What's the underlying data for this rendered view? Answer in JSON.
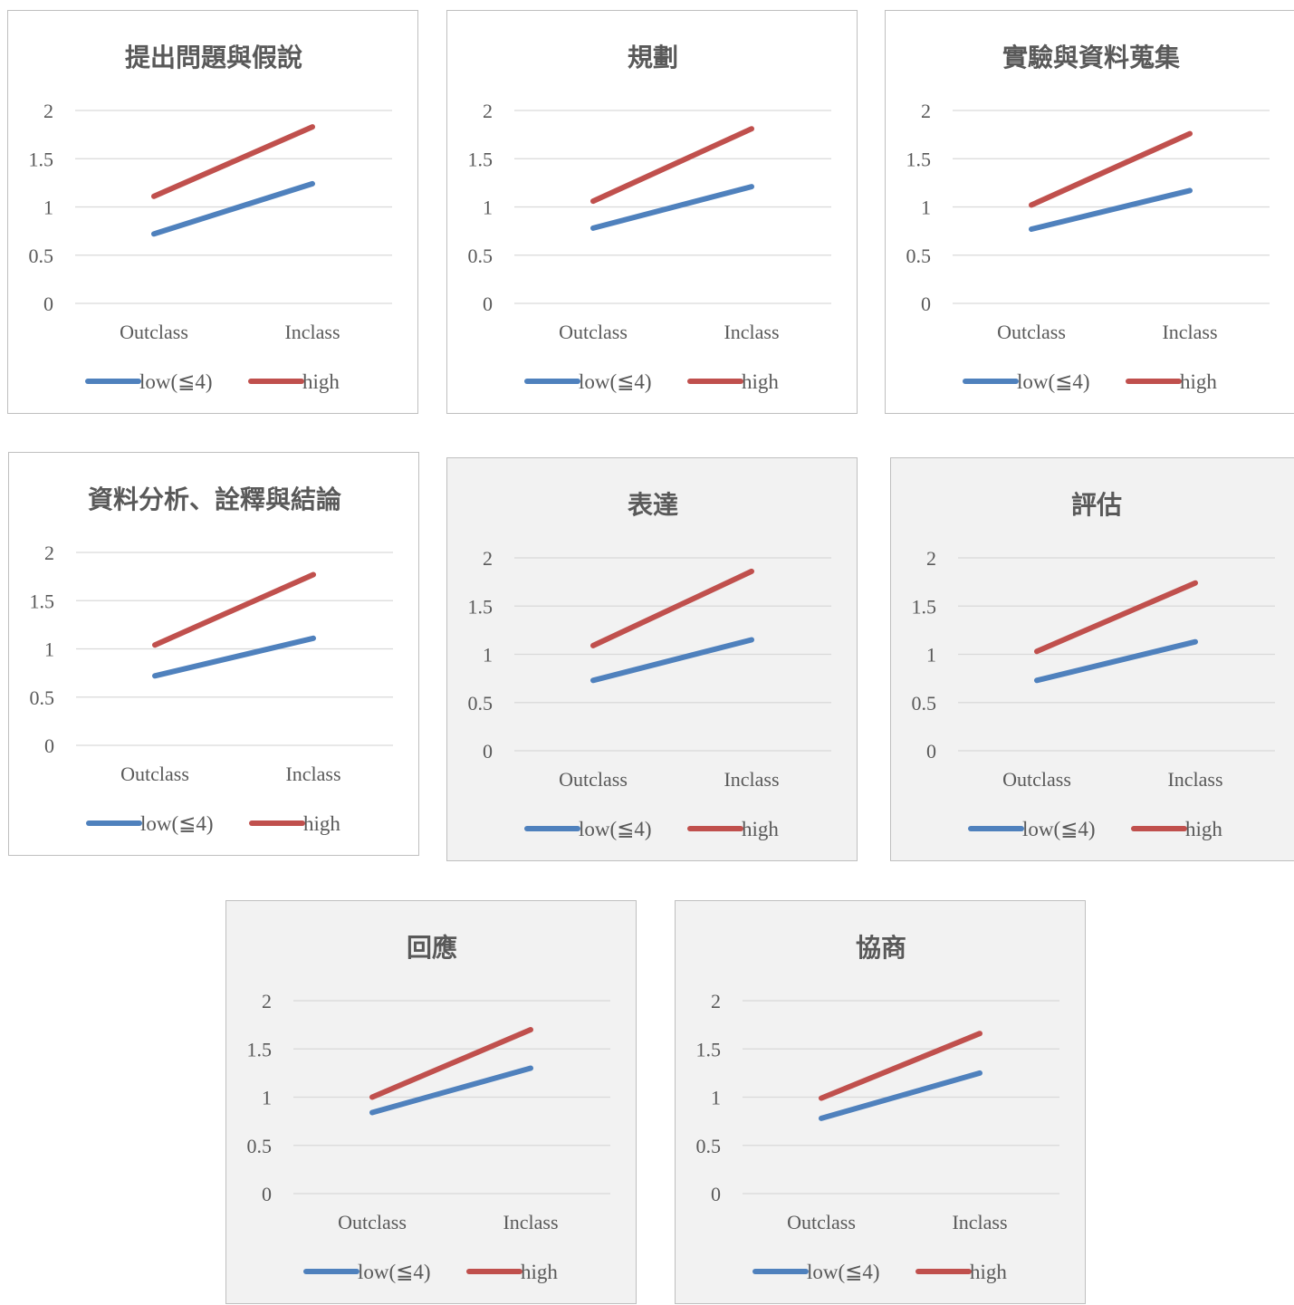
{
  "colors": {
    "low": "#4f81bd",
    "high": "#c0504d",
    "grid": "#d9d9d9",
    "text": "#595959"
  },
  "chart_data": [
    {
      "type": "line",
      "title": "提出問題與假說",
      "background": "white",
      "categories": [
        "Outclass",
        "Inclass"
      ],
      "ylim": [
        0,
        2
      ],
      "yticks": [
        "0",
        "0.5",
        "1",
        "1.5",
        "2"
      ],
      "grid": true,
      "legend": "bottom",
      "series": [
        {
          "name": "low(≦4)",
          "values": [
            0.72,
            1.24
          ]
        },
        {
          "name": "high",
          "values": [
            1.11,
            1.83
          ]
        }
      ]
    },
    {
      "type": "line",
      "title": "規劃",
      "background": "white",
      "categories": [
        "Outclass",
        "Inclass"
      ],
      "ylim": [
        0,
        2
      ],
      "yticks": [
        "0",
        "0.5",
        "1",
        "1.5",
        "2"
      ],
      "grid": true,
      "legend": "bottom",
      "series": [
        {
          "name": "low(≦4)",
          "values": [
            0.78,
            1.21
          ]
        },
        {
          "name": "high",
          "values": [
            1.06,
            1.81
          ]
        }
      ]
    },
    {
      "type": "line",
      "title": "實驗與資料蒐集",
      "background": "white",
      "categories": [
        "Outclass",
        "Inclass"
      ],
      "ylim": [
        0,
        2
      ],
      "yticks": [
        "0",
        "0.5",
        "1",
        "1.5",
        "2"
      ],
      "grid": true,
      "legend": "bottom",
      "series": [
        {
          "name": "low(≦4)",
          "values": [
            0.77,
            1.17
          ]
        },
        {
          "name": "high",
          "values": [
            1.02,
            1.76
          ]
        }
      ]
    },
    {
      "type": "line",
      "title": "資料分析、詮釋與結論",
      "background": "white",
      "categories": [
        "Outclass",
        "Inclass"
      ],
      "ylim": [
        0,
        2
      ],
      "yticks": [
        "0",
        "0.5",
        "1",
        "1.5",
        "2"
      ],
      "grid": true,
      "legend": "bottom",
      "series": [
        {
          "name": "low(≦4)",
          "values": [
            0.72,
            1.11
          ]
        },
        {
          "name": "high",
          "values": [
            1.04,
            1.77
          ]
        }
      ]
    },
    {
      "type": "line",
      "title": "表達",
      "background": "grey",
      "categories": [
        "Outclass",
        "Inclass"
      ],
      "ylim": [
        0,
        2
      ],
      "yticks": [
        "0",
        "0.5",
        "1",
        "1.5",
        "2"
      ],
      "grid": true,
      "legend": "bottom",
      "series": [
        {
          "name": "low(≦4)",
          "values": [
            0.73,
            1.15
          ]
        },
        {
          "name": "high",
          "values": [
            1.09,
            1.86
          ]
        }
      ]
    },
    {
      "type": "line",
      "title": "評估",
      "background": "grey",
      "categories": [
        "Outclass",
        "Inclass"
      ],
      "ylim": [
        0,
        2
      ],
      "yticks": [
        "0",
        "0.5",
        "1",
        "1.5",
        "2"
      ],
      "grid": true,
      "legend": "bottom",
      "series": [
        {
          "name": "low(≦4)",
          "values": [
            0.73,
            1.13
          ]
        },
        {
          "name": "high",
          "values": [
            1.03,
            1.74
          ]
        }
      ]
    },
    {
      "type": "line",
      "title": "回應",
      "background": "grey",
      "categories": [
        "Outclass",
        "Inclass"
      ],
      "ylim": [
        0,
        2
      ],
      "yticks": [
        "0",
        "0.5",
        "1",
        "1.5",
        "2"
      ],
      "grid": true,
      "legend": "bottom",
      "series": [
        {
          "name": "low(≦4)",
          "values": [
            0.84,
            1.3
          ]
        },
        {
          "name": "high",
          "values": [
            1.0,
            1.7
          ]
        }
      ]
    },
    {
      "type": "line",
      "title": "協商",
      "background": "grey",
      "categories": [
        "Outclass",
        "Inclass"
      ],
      "ylim": [
        0,
        2
      ],
      "yticks": [
        "0",
        "0.5",
        "1",
        "1.5",
        "2"
      ],
      "grid": true,
      "legend": "bottom",
      "series": [
        {
          "name": "low(≦4)",
          "values": [
            0.78,
            1.25
          ]
        },
        {
          "name": "high",
          "values": [
            0.99,
            1.66
          ]
        }
      ]
    }
  ]
}
